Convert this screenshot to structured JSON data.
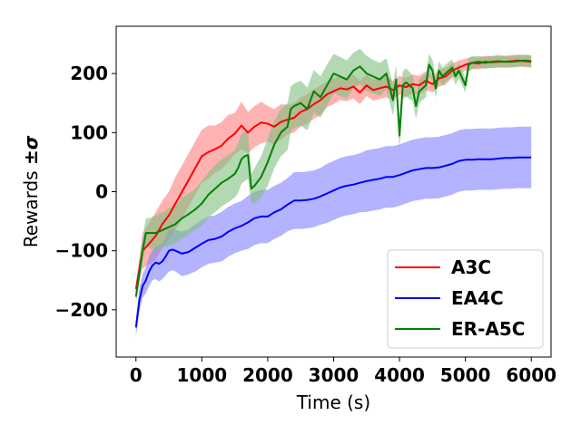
{
  "chart_data": {
    "type": "line",
    "title": "",
    "xlabel": "Time (s)",
    "ylabel_prefix": "Rewards ",
    "ylabel_symbol": "±σ",
    "xlim": [
      -300,
      6300
    ],
    "ylim": [
      -280,
      280
    ],
    "xticks": [
      0,
      1000,
      2000,
      3000,
      4000,
      5000,
      6000
    ],
    "xtick_labels": [
      "0",
      "1000",
      "2000",
      "3000",
      "4000",
      "5000",
      "6000"
    ],
    "yticks": [
      -200,
      -100,
      0,
      100,
      200
    ],
    "ytick_labels": [
      "−200",
      "−100",
      "0",
      "100",
      "200"
    ],
    "grid": false,
    "legend_position": "bottom-right",
    "series": [
      {
        "name": "A3C",
        "color": "#ff0000",
        "fill_color": "#ff7f7f",
        "x": [
          0,
          100,
          200,
          300,
          400,
          500,
          600,
          700,
          800,
          900,
          1000,
          1100,
          1200,
          1300,
          1400,
          1500,
          1600,
          1700,
          1800,
          1900,
          2000,
          2100,
          2200,
          2300,
          2400,
          2500,
          2600,
          2700,
          2800,
          2900,
          3000,
          3100,
          3200,
          3300,
          3400,
          3500,
          3600,
          3700,
          3800,
          3900,
          4000,
          4100,
          4200,
          4300,
          4400,
          4500,
          4600,
          4700,
          4800,
          4900,
          5000,
          5100,
          5200,
          5300,
          5400,
          5500,
          5600,
          5700,
          5800,
          5900,
          6000
        ],
        "y": [
          -165,
          -100,
          -88,
          -75,
          -55,
          -40,
          -20,
          0,
          20,
          40,
          60,
          67,
          72,
          78,
          90,
          98,
          112,
          100,
          110,
          117,
          115,
          110,
          118,
          122,
          125,
          135,
          140,
          148,
          155,
          165,
          170,
          175,
          173,
          178,
          168,
          180,
          172,
          175,
          178,
          172,
          180,
          177,
          182,
          180,
          188,
          182,
          192,
          195,
          205,
          210,
          215,
          218,
          217,
          220,
          219,
          220,
          220,
          221,
          222,
          221,
          220
        ],
        "sigma": [
          10,
          30,
          35,
          40,
          40,
          40,
          45,
          45,
          45,
          45,
          45,
          45,
          40,
          40,
          40,
          35,
          40,
          35,
          35,
          35,
          30,
          30,
          30,
          25,
          25,
          25,
          25,
          25,
          25,
          22,
          22,
          20,
          20,
          20,
          20,
          18,
          18,
          18,
          18,
          16,
          16,
          16,
          16,
          16,
          16,
          14,
          14,
          14,
          12,
          12,
          10,
          10,
          10,
          10,
          10,
          10,
          10,
          10,
          10,
          10,
          10
        ]
      },
      {
        "name": "EA4C",
        "color": "#0000ff",
        "fill_color": "#8080ff",
        "x": [
          0,
          50,
          100,
          150,
          200,
          250,
          300,
          350,
          400,
          450,
          500,
          550,
          600,
          700,
          800,
          900,
          1000,
          1100,
          1200,
          1300,
          1400,
          1500,
          1600,
          1700,
          1800,
          1900,
          2000,
          2100,
          2200,
          2300,
          2400,
          2500,
          2600,
          2700,
          2800,
          2900,
          3000,
          3100,
          3200,
          3300,
          3400,
          3500,
          3600,
          3700,
          3800,
          3900,
          4000,
          4100,
          4200,
          4300,
          4400,
          4500,
          4600,
          4700,
          4800,
          4900,
          5000,
          5100,
          5200,
          5300,
          5400,
          5500,
          5600,
          5700,
          5800,
          5900,
          6000
        ],
        "y": [
          -230,
          -185,
          -160,
          -150,
          -135,
          -125,
          -120,
          -122,
          -118,
          -110,
          -100,
          -98,
          -100,
          -105,
          -102,
          -95,
          -88,
          -82,
          -80,
          -76,
          -68,
          -62,
          -58,
          -52,
          -45,
          -42,
          -42,
          -35,
          -30,
          -22,
          -15,
          -15,
          -14,
          -12,
          -8,
          -3,
          2,
          7,
          10,
          12,
          15,
          18,
          20,
          22,
          25,
          25,
          28,
          32,
          36,
          38,
          40,
          40,
          41,
          44,
          47,
          52,
          54,
          54,
          55,
          55,
          55,
          56,
          57,
          57,
          58,
          58,
          58
        ],
        "sigma": [
          15,
          20,
          20,
          22,
          25,
          25,
          28,
          30,
          30,
          32,
          35,
          35,
          35,
          38,
          38,
          40,
          40,
          40,
          40,
          42,
          42,
          42,
          42,
          45,
          45,
          45,
          45,
          45,
          45,
          45,
          48,
          48,
          48,
          48,
          48,
          50,
          50,
          50,
          50,
          50,
          50,
          52,
          52,
          52,
          52,
          52,
          52,
          52,
          52,
          52,
          52,
          52,
          52,
          52,
          52,
          52,
          52,
          52,
          52,
          52,
          52,
          52,
          52,
          52,
          52,
          52,
          52
        ]
      },
      {
        "name": "ER-A5C",
        "color": "#008000",
        "fill_color": "#7fbf7f",
        "x": [
          0,
          100,
          150,
          200,
          300,
          400,
          500,
          600,
          700,
          800,
          900,
          1000,
          1100,
          1200,
          1300,
          1400,
          1500,
          1550,
          1600,
          1650,
          1700,
          1750,
          1800,
          1900,
          2000,
          2100,
          2200,
          2300,
          2350,
          2400,
          2500,
          2600,
          2700,
          2800,
          2900,
          3000,
          3100,
          3200,
          3300,
          3400,
          3500,
          3600,
          3700,
          3800,
          3900,
          3950,
          4000,
          4050,
          4100,
          4200,
          4250,
          4300,
          4400,
          4450,
          4500,
          4550,
          4600,
          4650,
          4700,
          4800,
          4850,
          4900,
          5000,
          5050,
          5100,
          5200,
          5300,
          5400,
          5500,
          5600,
          5700,
          5800,
          5900,
          6000
        ],
        "y": [
          -178,
          -100,
          -70,
          -70,
          -70,
          -65,
          -60,
          -55,
          -45,
          -38,
          -30,
          -20,
          -5,
          5,
          15,
          22,
          30,
          40,
          55,
          60,
          62,
          5,
          10,
          25,
          50,
          80,
          100,
          110,
          140,
          145,
          150,
          140,
          170,
          160,
          180,
          200,
          195,
          190,
          205,
          212,
          200,
          195,
          190,
          200,
          155,
          190,
          95,
          180,
          185,
          175,
          145,
          170,
          180,
          215,
          205,
          175,
          205,
          195,
          200,
          210,
          195,
          205,
          180,
          215,
          218,
          220,
          218,
          220,
          221,
          220,
          220,
          221,
          222,
          221
        ],
        "sigma": [
          10,
          20,
          25,
          25,
          30,
          30,
          32,
          32,
          35,
          35,
          35,
          38,
          38,
          40,
          40,
          40,
          40,
          42,
          42,
          42,
          40,
          25,
          30,
          35,
          40,
          40,
          40,
          40,
          38,
          38,
          38,
          36,
          36,
          35,
          35,
          33,
          33,
          32,
          30,
          30,
          30,
          28,
          28,
          26,
          26,
          25,
          25,
          24,
          24,
          22,
          22,
          20,
          20,
          18,
          18,
          16,
          16,
          15,
          15,
          14,
          14,
          13,
          12,
          12,
          11,
          10,
          10,
          10,
          10,
          10,
          10,
          10,
          10,
          10
        ]
      }
    ]
  }
}
